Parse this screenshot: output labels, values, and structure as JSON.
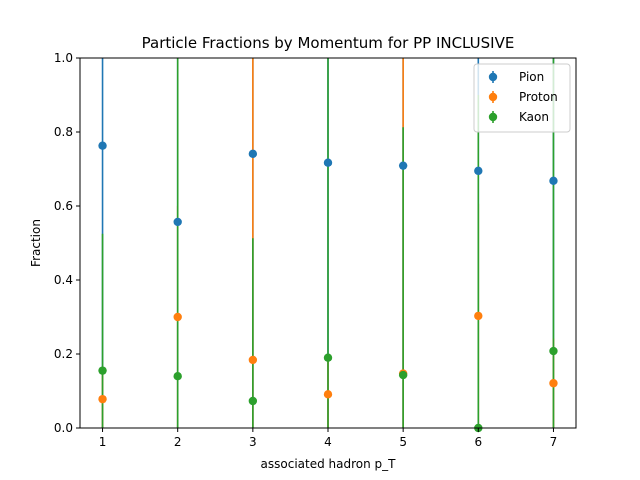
{
  "chart_data": {
    "type": "scatter",
    "title": "Particle Fractions by Momentum for PP INCLUSIVE",
    "xlabel": "associated hadron p_T",
    "ylabel": "Fraction",
    "xlim": [
      0.7,
      7.3
    ],
    "ylim": [
      0.0,
      1.0
    ],
    "xticks": [
      "1",
      "2",
      "3",
      "4",
      "5",
      "6",
      "7"
    ],
    "yticks": [
      "0.0",
      "0.2",
      "0.4",
      "0.6",
      "0.8",
      "1.0"
    ],
    "grid": false,
    "legend_position": "top-right",
    "x": [
      1,
      2,
      3,
      4,
      5,
      6,
      7
    ],
    "series": [
      {
        "name": "Pion",
        "color": "#1f77b4",
        "values": [
          0.763,
          0.557,
          0.741,
          0.717,
          0.709,
          0.695,
          0.668
        ],
        "err_low": [
          0.763,
          0.557,
          0.741,
          0.717,
          0.709,
          0.695,
          0.668
        ],
        "err_high": [
          0.763,
          0.557,
          0.741,
          0.717,
          0.709,
          0.695,
          0.668
        ]
      },
      {
        "name": "Proton",
        "color": "#ff7f0e",
        "values": [
          0.078,
          0.3,
          0.184,
          0.091,
          0.147,
          0.303,
          0.121
        ],
        "err_low": [
          0.078,
          0.3,
          0.184,
          0.091,
          0.147,
          0.303,
          0.121
        ],
        "err_high": [
          0.078,
          0.3,
          0.9,
          0.091,
          0.9,
          0.303,
          0.121
        ]
      },
      {
        "name": "Kaon",
        "color": "#2ca02c",
        "values": [
          0.155,
          0.14,
          0.073,
          0.19,
          0.143,
          0.0,
          0.208
        ],
        "err_low": [
          0.155,
          0.14,
          0.073,
          0.19,
          0.143,
          0.0,
          0.208
        ],
        "err_high": [
          0.37,
          0.9,
          0.44,
          0.9,
          0.67,
          0.9,
          0.9
        ]
      }
    ]
  }
}
